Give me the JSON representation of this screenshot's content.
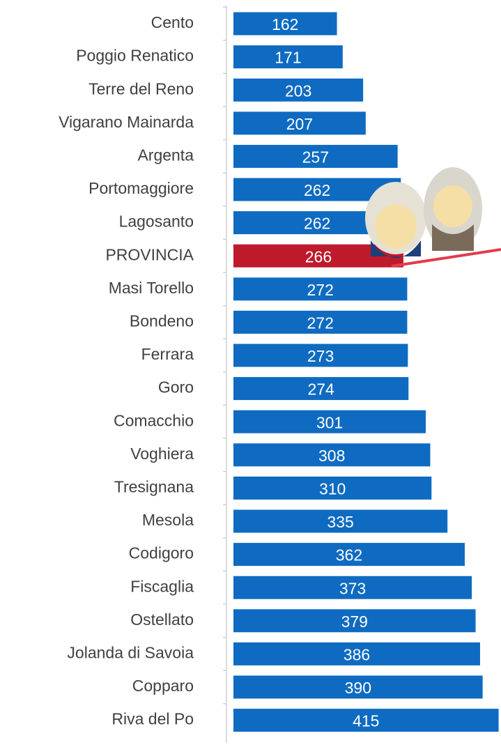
{
  "chart_data": {
    "type": "barh",
    "categories": [
      "Cento",
      "Poggio Renatico",
      "Terre del Reno",
      "Vigarano Mainarda",
      "Argenta",
      "Portomaggiore",
      "Lagosanto",
      "PROVINCIA",
      "Masi Torello",
      "Bondeno",
      "Ferrara",
      "Goro",
      "Comacchio",
      "Voghiera",
      "Tresignana",
      "Mesola",
      "Codigoro",
      "Fiscaglia",
      "Ostellato",
      "Jolanda di Savoia",
      "Copparo",
      "Riva del Po"
    ],
    "values": [
      162,
      171,
      203,
      207,
      257,
      262,
      262,
      266,
      272,
      272,
      273,
      274,
      301,
      308,
      310,
      335,
      362,
      373,
      379,
      386,
      390,
      415
    ],
    "colors": [
      "#0e6bc1",
      "#0e6bc1",
      "#0e6bc1",
      "#0e6bc1",
      "#0e6bc1",
      "#0e6bc1",
      "#0e6bc1",
      "#be1a2b",
      "#0e6bc1",
      "#0e6bc1",
      "#0e6bc1",
      "#0e6bc1",
      "#0e6bc1",
      "#0e6bc1",
      "#0e6bc1",
      "#0e6bc1",
      "#0e6bc1",
      "#0e6bc1",
      "#0e6bc1",
      "#0e6bc1",
      "#0e6bc1",
      "#0e6bc1"
    ]
  }
}
